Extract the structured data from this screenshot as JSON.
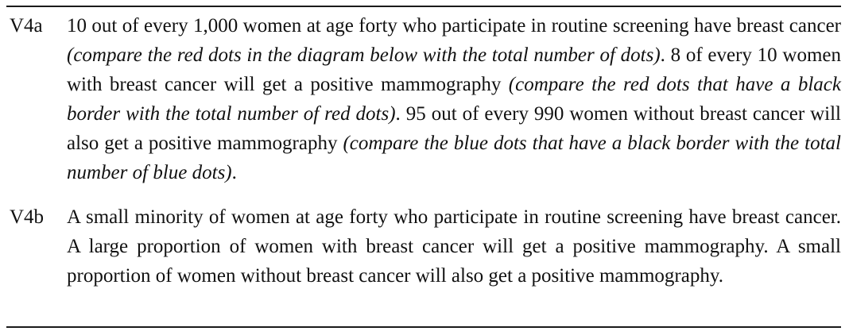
{
  "rows": [
    {
      "label": "V4a",
      "segments": [
        {
          "text": "10 out of every 1,000 women at age forty who participate in routine screening have breast cancer ",
          "italic": false
        },
        {
          "text": "(compare the red dots in the diagram below with the total number of dots)",
          "italic": true
        },
        {
          "text": ". 8 of every 10 women with breast cancer will get a positive mammography ",
          "italic": false
        },
        {
          "text": "(compare the red dots that have a black border with the total number of red dots)",
          "italic": true
        },
        {
          "text": ". 95 out of every 990 women without breast cancer will also get a positive mammography ",
          "italic": false
        },
        {
          "text": "(compare the blue dots that have a black border with the total number of blue dots)",
          "italic": true
        },
        {
          "text": ".",
          "italic": false
        }
      ]
    },
    {
      "label": "V4b",
      "segments": [
        {
          "text": "A small minority of women at age forty who participate in routine screening have breast cancer. A large proportion of women with breast cancer will get a positive mammography. A small proportion of women without breast cancer will also get a positive mammography.",
          "italic": false
        }
      ]
    }
  ]
}
